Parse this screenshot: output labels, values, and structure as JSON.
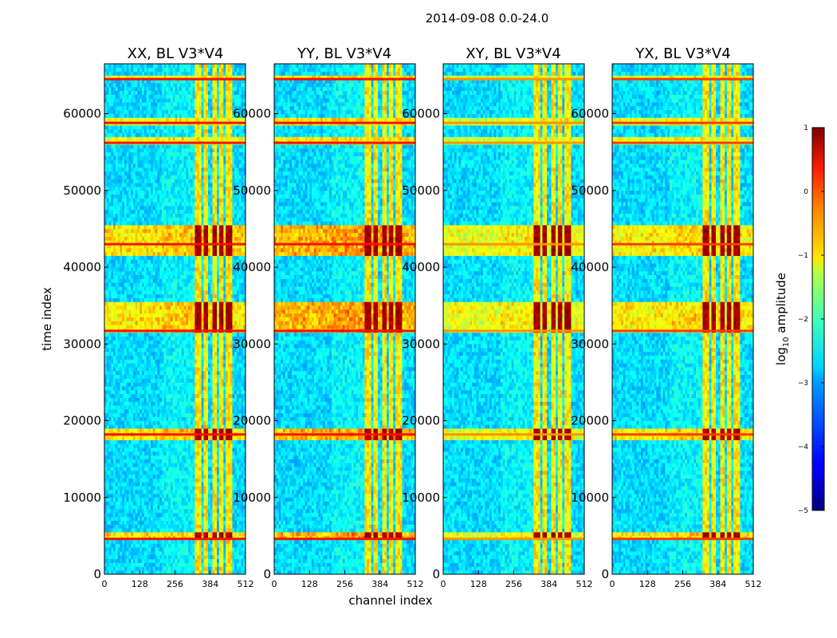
{
  "chart_data": {
    "type": "heatmap",
    "suptitle": "2014-09-08 0.0-24.0",
    "xlabel": "channel index",
    "ylabel": "time index",
    "xlim": [
      0,
      512
    ],
    "ylim": [
      0,
      66500
    ],
    "xticks": [
      "0",
      "128",
      "256",
      "384",
      "512"
    ],
    "yticks": [
      "0",
      "10000",
      "20000",
      "30000",
      "40000",
      "50000",
      "60000"
    ],
    "panels": [
      {
        "title": "XX, BL V3*V4",
        "hot_band_strength": 1.0
      },
      {
        "title": "YY, BL V3*V4",
        "hot_band_strength": 1.15
      },
      {
        "title": "XY, BL V3*V4",
        "hot_band_strength": 0.85
      },
      {
        "title": "YX, BL V3*V4",
        "hot_band_strength": 0.95
      }
    ],
    "colorbar": {
      "label_main": "log",
      "label_sub": "10",
      "label_rest": " amplitude",
      "range": [
        -5,
        1
      ],
      "ticks": [
        "1",
        "0",
        "−1",
        "−2",
        "−3",
        "−4",
        "−5"
      ],
      "colormap": "jet"
    },
    "features": {
      "rfi_channel_bands": [
        [
          325,
          345
        ],
        [
          355,
          375
        ],
        [
          385,
          405
        ],
        [
          410,
          430
        ],
        [
          440,
          460
        ]
      ],
      "hot_time_bands": [
        [
          41500,
          45000
        ],
        [
          31500,
          35000
        ],
        [
          17500,
          18500
        ],
        [
          4300,
          5000
        ]
      ],
      "wideband_time_lines": [
        64500,
        58800,
        56200,
        43000,
        31700,
        18200,
        4600
      ]
    }
  }
}
